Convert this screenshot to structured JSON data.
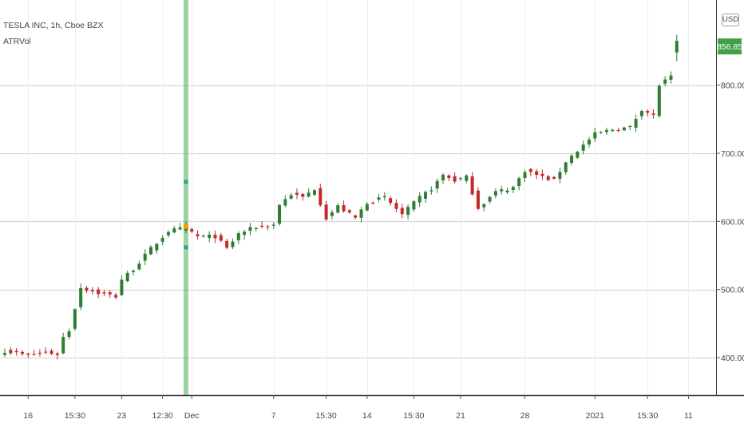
{
  "chart_data": {
    "type": "candlestick",
    "legend": {
      "symbol_line": "TESLA INC, 1h, Cboe BZX",
      "indicator": "ATRVol"
    },
    "currency": "USD",
    "y_axis": {
      "ticks": [
        {
          "value": 400,
          "label": "400.00"
        },
        {
          "value": 500,
          "label": "500.00"
        },
        {
          "value": 600,
          "label": "600.00"
        },
        {
          "value": 700,
          "label": "700.00"
        },
        {
          "value": 800,
          "label": "800.00"
        }
      ],
      "range": [
        345,
        925
      ]
    },
    "last_price": {
      "value": 856.85,
      "label": "856.85"
    },
    "x_axis": {
      "ticks": [
        "16",
        "15:30",
        "23",
        "12:30",
        "Dec",
        "7",
        "15:30",
        "14",
        "15:30",
        "21",
        "28",
        "2021",
        "15:30",
        "11"
      ],
      "tick_bars": [
        4,
        12,
        20,
        27,
        32,
        46,
        55,
        62,
        70,
        78,
        89,
        101,
        110,
        117
      ]
    },
    "colors": {
      "up": "#26a69a",
      "down": "#ef5350",
      "up_display": "#2e7d32",
      "down_display": "#c62828",
      "grid": "#d6d8de",
      "highlight": "#4caf50",
      "marker": "#ff9800",
      "price_tag": "#43a047"
    },
    "highlight_bar": 31,
    "anchors": [
      [
        0,
        410
      ],
      [
        4,
        403
      ],
      [
        7,
        408
      ],
      [
        9,
        405
      ],
      [
        10,
        430
      ],
      [
        11,
        440
      ],
      [
        12,
        473
      ],
      [
        13,
        503
      ],
      [
        16,
        495
      ],
      [
        19,
        490
      ],
      [
        20,
        515
      ],
      [
        22,
        530
      ],
      [
        25,
        560
      ],
      [
        28,
        586
      ],
      [
        31,
        590
      ],
      [
        33,
        578
      ],
      [
        36,
        578
      ],
      [
        38,
        560
      ],
      [
        40,
        582
      ],
      [
        43,
        592
      ],
      [
        46,
        595
      ],
      [
        47,
        625
      ],
      [
        49,
        640
      ],
      [
        51,
        635
      ],
      [
        53,
        648
      ],
      [
        55,
        605
      ],
      [
        57,
        622
      ],
      [
        60,
        605
      ],
      [
        62,
        628
      ],
      [
        65,
        635
      ],
      [
        68,
        610
      ],
      [
        71,
        635
      ],
      [
        73,
        648
      ],
      [
        75,
        668
      ],
      [
        77,
        660
      ],
      [
        79,
        665
      ],
      [
        81,
        620
      ],
      [
        84,
        643
      ],
      [
        87,
        650
      ],
      [
        89,
        675
      ],
      [
        92,
        665
      ],
      [
        94,
        660
      ],
      [
        96,
        688
      ],
      [
        99,
        712
      ],
      [
        101,
        728
      ],
      [
        104,
        735
      ],
      [
        107,
        738
      ],
      [
        109,
        765
      ],
      [
        111,
        755
      ],
      [
        112,
        800
      ],
      [
        114,
        812
      ]
    ],
    "extra_bar": {
      "open": 848,
      "high": 874,
      "low": 835,
      "close": 865
    }
  }
}
